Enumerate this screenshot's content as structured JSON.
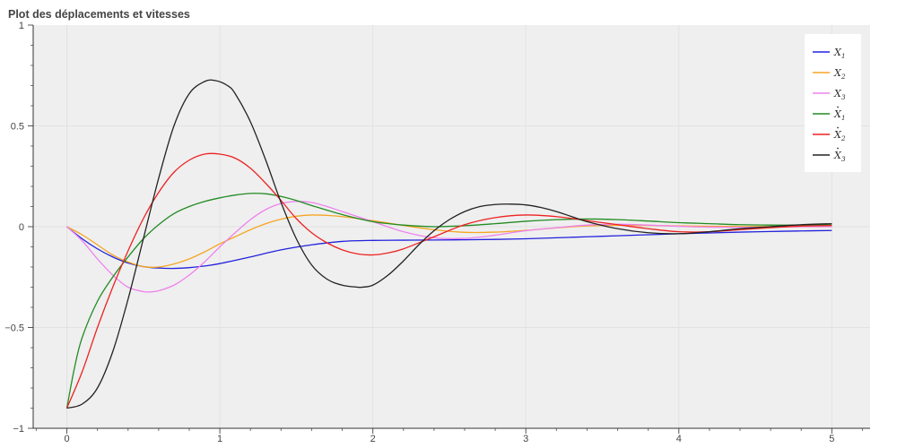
{
  "chart_data": {
    "type": "line",
    "title": "Plot des déplacements et vitesses",
    "xlabel": "",
    "ylabel": "",
    "xlim": [
      -0.22,
      5.25
    ],
    "ylim": [
      -1,
      1
    ],
    "xticks": [
      0,
      1,
      2,
      3,
      4,
      5
    ],
    "xtick_labels": [
      "0",
      "1",
      "2",
      "3",
      "4",
      "5"
    ],
    "yticks": [
      -1,
      -0.5,
      0,
      0.5,
      1
    ],
    "ytick_labels": [
      "−1",
      "−0.5",
      "0",
      "0.5",
      "1"
    ],
    "grid": true,
    "legend_position": "top-right",
    "plot_background": "#efefef",
    "series": [
      {
        "name": "x1",
        "legend": {
          "base": "X",
          "sub": "1",
          "dot": false
        },
        "color": "#2222dd",
        "x": [
          0,
          0.1,
          0.2,
          0.3,
          0.4,
          0.5,
          0.6,
          0.7,
          0.8,
          0.9,
          1.0,
          1.2,
          1.4,
          1.6,
          1.8,
          2.0,
          2.2,
          2.4,
          2.6,
          2.8,
          3.0,
          3.2,
          3.4,
          3.6,
          3.8,
          4.0,
          4.2,
          4.4,
          4.6,
          4.8,
          5.0
        ],
        "y": [
          0,
          -0.06,
          -0.11,
          -0.15,
          -0.18,
          -0.198,
          -0.205,
          -0.207,
          -0.203,
          -0.195,
          -0.183,
          -0.15,
          -0.115,
          -0.09,
          -0.073,
          -0.068,
          -0.067,
          -0.066,
          -0.065,
          -0.063,
          -0.06,
          -0.055,
          -0.05,
          -0.045,
          -0.04,
          -0.035,
          -0.031,
          -0.027,
          -0.024,
          -0.021,
          -0.019
        ]
      },
      {
        "name": "x2",
        "legend": {
          "base": "X",
          "sub": "2",
          "dot": false
        },
        "color": "#f5a623",
        "x": [
          0,
          0.1,
          0.2,
          0.3,
          0.4,
          0.5,
          0.6,
          0.7,
          0.8,
          0.9,
          1.0,
          1.1,
          1.2,
          1.3,
          1.4,
          1.5,
          1.6,
          1.7,
          1.8,
          2.0,
          2.2,
          2.4,
          2.6,
          2.8,
          3.0,
          3.2,
          3.4,
          3.6,
          3.8,
          4.0,
          4.2,
          4.4,
          4.6,
          4.8,
          5.0
        ],
        "y": [
          0,
          -0.04,
          -0.09,
          -0.14,
          -0.175,
          -0.198,
          -0.2,
          -0.185,
          -0.16,
          -0.125,
          -0.085,
          -0.05,
          -0.015,
          0.015,
          0.037,
          0.052,
          0.058,
          0.056,
          0.05,
          0.03,
          0.006,
          -0.015,
          -0.028,
          -0.027,
          -0.018,
          -0.006,
          0.004,
          0.007,
          0.006,
          0.004,
          0.002,
          0.001,
          0.001,
          0.0,
          0.0
        ]
      },
      {
        "name": "x3",
        "legend": {
          "base": "X",
          "sub": "3",
          "dot": false
        },
        "color": "#ee82ee",
        "x": [
          0,
          0.1,
          0.2,
          0.3,
          0.4,
          0.5,
          0.55,
          0.6,
          0.7,
          0.8,
          0.9,
          1.0,
          1.1,
          1.2,
          1.3,
          1.4,
          1.5,
          1.6,
          1.7,
          1.8,
          2.0,
          2.2,
          2.4,
          2.6,
          2.8,
          3.0,
          3.2,
          3.4,
          3.6,
          3.8,
          4.0,
          4.2,
          4.4,
          4.6,
          4.8,
          5.0
        ],
        "y": [
          0,
          -0.07,
          -0.16,
          -0.24,
          -0.3,
          -0.322,
          -0.323,
          -0.318,
          -0.29,
          -0.24,
          -0.175,
          -0.1,
          -0.03,
          0.035,
          0.085,
          0.115,
          0.125,
          0.12,
          0.1,
          0.075,
          0.025,
          -0.025,
          -0.055,
          -0.058,
          -0.042,
          -0.02,
          -0.005,
          0.008,
          0.012,
          0.008,
          0.002,
          -0.002,
          -0.003,
          -0.002,
          0.0,
          0.0
        ]
      },
      {
        "name": "v1",
        "legend": {
          "base": "X",
          "sub": "1",
          "dot": true
        },
        "color": "#228b22",
        "x": [
          0,
          0.05,
          0.1,
          0.2,
          0.3,
          0.4,
          0.5,
          0.6,
          0.7,
          0.8,
          0.9,
          1.0,
          1.1,
          1.2,
          1.3,
          1.4,
          1.5,
          1.6,
          1.8,
          2.0,
          2.2,
          2.4,
          2.6,
          2.8,
          3.0,
          3.2,
          3.4,
          3.6,
          3.8,
          4.0,
          4.2,
          4.4,
          4.6,
          4.8,
          5.0
        ],
        "y": [
          -0.9,
          -0.7,
          -0.55,
          -0.37,
          -0.25,
          -0.15,
          -0.06,
          0.01,
          0.065,
          0.1,
          0.125,
          0.143,
          0.157,
          0.165,
          0.163,
          0.15,
          0.13,
          0.105,
          0.06,
          0.025,
          0.008,
          0.0,
          0.005,
          0.015,
          0.027,
          0.035,
          0.038,
          0.035,
          0.028,
          0.02,
          0.015,
          0.01,
          0.008,
          0.008,
          0.009
        ]
      },
      {
        "name": "v2",
        "legend": {
          "base": "X",
          "sub": "2",
          "dot": true
        },
        "color": "#ee2222",
        "x": [
          0,
          0.1,
          0.2,
          0.3,
          0.4,
          0.5,
          0.6,
          0.7,
          0.8,
          0.9,
          1.0,
          1.1,
          1.2,
          1.3,
          1.4,
          1.5,
          1.6,
          1.7,
          1.8,
          1.9,
          2.0,
          2.1,
          2.2,
          2.4,
          2.6,
          2.8,
          3.0,
          3.2,
          3.4,
          3.6,
          3.8,
          4.0,
          4.2,
          4.4,
          4.6,
          4.8,
          5.0
        ],
        "y": [
          -0.9,
          -0.72,
          -0.5,
          -0.3,
          -0.12,
          0.04,
          0.17,
          0.27,
          0.33,
          0.36,
          0.36,
          0.34,
          0.29,
          0.215,
          0.13,
          0.04,
          -0.03,
          -0.08,
          -0.115,
          -0.135,
          -0.14,
          -0.13,
          -0.11,
          -0.05,
          0.01,
          0.045,
          0.058,
          0.05,
          0.03,
          0.01,
          -0.01,
          -0.025,
          -0.025,
          -0.015,
          -0.005,
          0.003,
          0.006
        ]
      },
      {
        "name": "v3",
        "legend": {
          "base": "X",
          "sub": "3",
          "dot": true
        },
        "color": "#222222",
        "x": [
          0,
          0.1,
          0.2,
          0.3,
          0.4,
          0.5,
          0.6,
          0.7,
          0.8,
          0.9,
          0.97,
          1.05,
          1.1,
          1.2,
          1.3,
          1.4,
          1.5,
          1.6,
          1.7,
          1.8,
          1.9,
          1.93,
          2.0,
          2.1,
          2.2,
          2.3,
          2.4,
          2.5,
          2.6,
          2.7,
          2.8,
          2.9,
          3.0,
          3.1,
          3.2,
          3.3,
          3.4,
          3.6,
          3.8,
          4.0,
          4.2,
          4.4,
          4.6,
          4.8,
          5.0
        ],
        "y": [
          -0.9,
          -0.88,
          -0.8,
          -0.62,
          -0.36,
          -0.06,
          0.24,
          0.5,
          0.66,
          0.72,
          0.725,
          0.7,
          0.66,
          0.52,
          0.33,
          0.12,
          -0.06,
          -0.19,
          -0.26,
          -0.29,
          -0.3,
          -0.3,
          -0.29,
          -0.24,
          -0.17,
          -0.09,
          -0.02,
          0.035,
          0.075,
          0.1,
          0.11,
          0.112,
          0.108,
          0.095,
          0.075,
          0.05,
          0.025,
          -0.01,
          -0.03,
          -0.035,
          -0.025,
          -0.01,
          0.0,
          0.01,
          0.015
        ]
      }
    ]
  }
}
